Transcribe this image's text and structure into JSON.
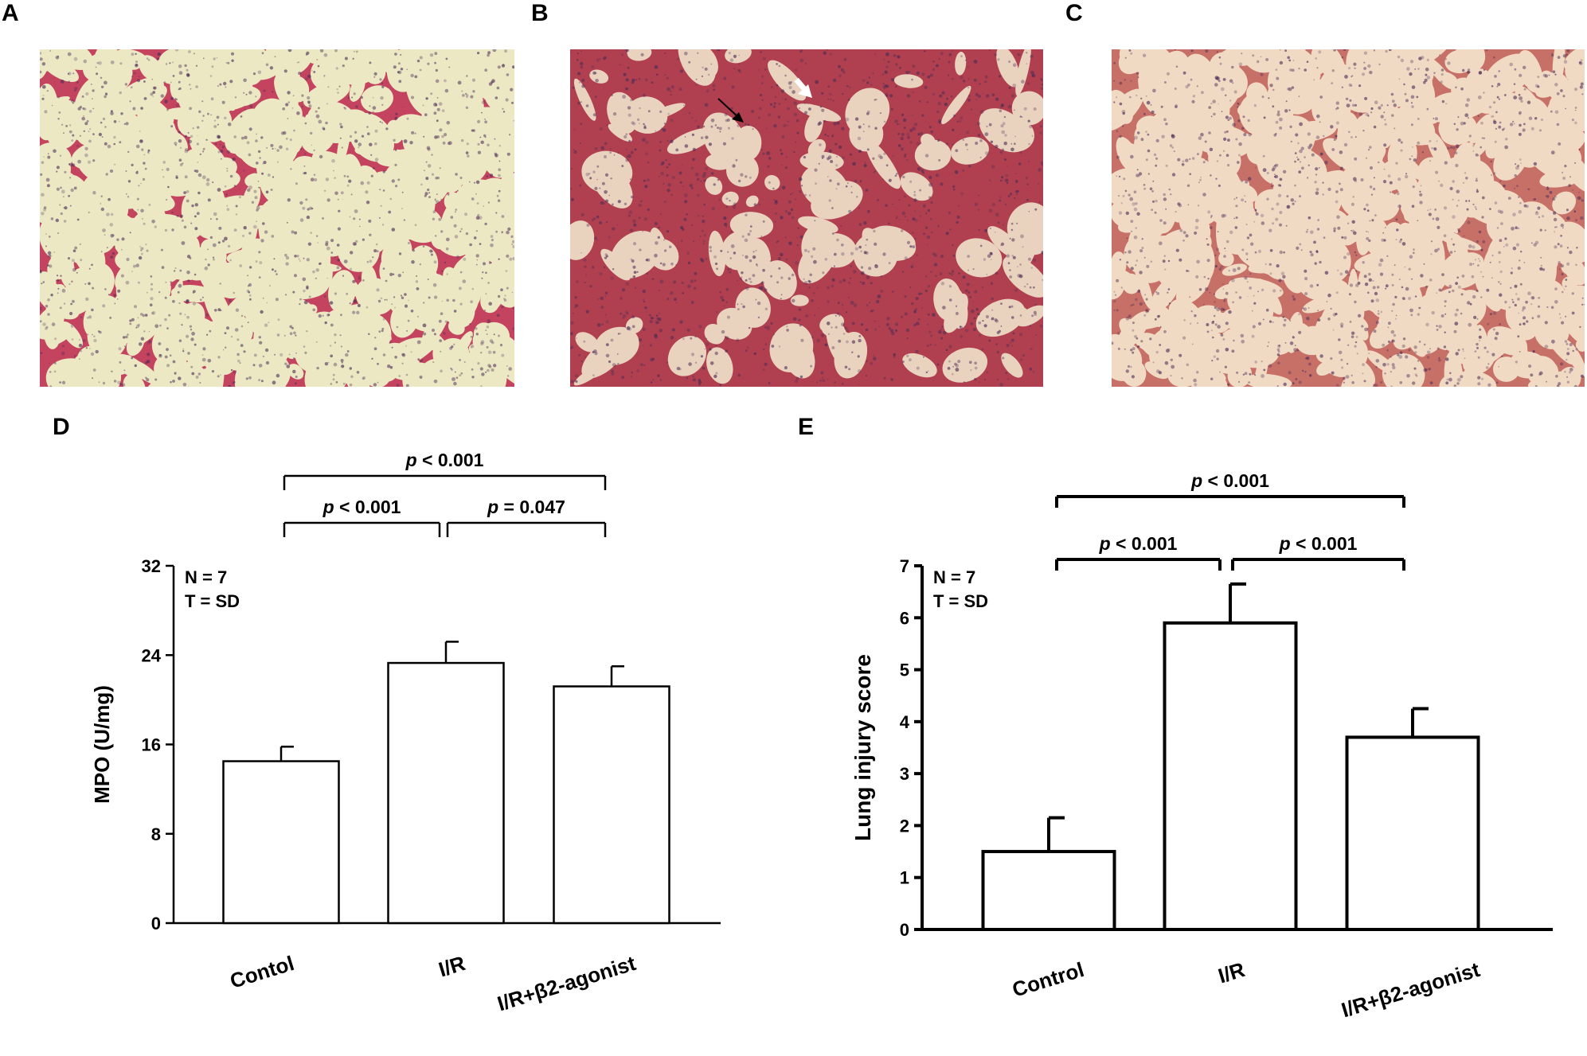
{
  "panels": {
    "A": {
      "letter": "A"
    },
    "B": {
      "letter": "B"
    },
    "C": {
      "letter": "C"
    },
    "D": {
      "letter": "D"
    },
    "E": {
      "letter": "E"
    }
  },
  "colors": {
    "micrograph_a_bg": "#ece8c4",
    "micrograph_a_tissue": "#c4445f",
    "micrograph_b_bg": "#e9d3bf",
    "micrograph_b_tissue": "#b0404f",
    "micrograph_c_bg": "#f0dac4",
    "micrograph_c_tissue": "#c77068",
    "bar_fill": "#ffffff",
    "ink": "#000000"
  },
  "chart_data": [
    {
      "id": "D",
      "type": "bar",
      "categories": [
        "Contol",
        "I/R",
        "I/R+β2-agonist"
      ],
      "values": [
        14.5,
        23.3,
        21.2
      ],
      "errors": [
        1.3,
        1.9,
        1.8
      ],
      "ylabel": "MPO (U/mg)",
      "ylim": [
        0,
        32
      ],
      "yticks": [
        "0",
        "8",
        "16",
        "24",
        "32"
      ],
      "annotation_lines": [
        "N = 7",
        "T = SD"
      ],
      "comparisons": [
        {
          "from": 0,
          "to": 1,
          "label_p": "p",
          "label_rest": " < 0.001"
        },
        {
          "from": 1,
          "to": 2,
          "label_p": "p",
          "label_rest": " = 0.047"
        },
        {
          "from": 0,
          "to": 2,
          "label_p": "p",
          "label_rest": " < 0.001"
        }
      ]
    },
    {
      "id": "E",
      "type": "bar",
      "categories": [
        "Control",
        "I/R",
        "I/R+β2-agonist"
      ],
      "values": [
        1.5,
        5.9,
        3.7
      ],
      "errors": [
        0.65,
        0.75,
        0.55
      ],
      "ylabel": "Lung injury score",
      "ylim": [
        0,
        7
      ],
      "yticks": [
        "0",
        "1",
        "2",
        "3",
        "4",
        "5",
        "6",
        "7"
      ],
      "annotation_lines": [
        "N = 7",
        "T = SD"
      ],
      "comparisons": [
        {
          "from": 0,
          "to": 1,
          "label_p": "p",
          "label_rest": " < 0.001"
        },
        {
          "from": 1,
          "to": 2,
          "label_p": "p",
          "label_rest": " < 0.001"
        },
        {
          "from": 0,
          "to": 2,
          "label_p": "p",
          "label_rest": " < 0.001"
        }
      ]
    }
  ]
}
